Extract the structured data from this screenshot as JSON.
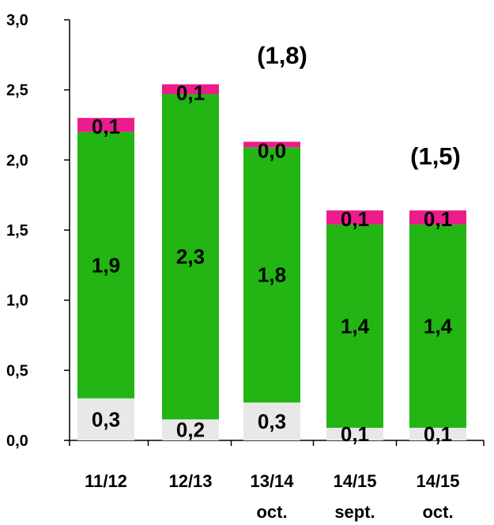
{
  "chart_data": {
    "type": "bar",
    "stacked": true,
    "categories": [
      [
        "11/12",
        ""
      ],
      [
        "12/13",
        ""
      ],
      [
        "13/14",
        "oct."
      ],
      [
        "14/15",
        "sept."
      ],
      [
        "14/15",
        "oct."
      ]
    ],
    "series": [
      {
        "values": [
          0.3,
          0.15,
          0.27,
          0.09,
          0.09
        ],
        "labels": [
          "0,3",
          "0,2",
          "0,3",
          "0,1",
          "0,1"
        ],
        "color": "#e8e8e8"
      },
      {
        "values": [
          1.9,
          2.32,
          1.82,
          1.45,
          1.45
        ],
        "labels": [
          "1,9",
          "2,3",
          "1,8",
          "1,4",
          "1,4"
        ],
        "color": "#22b514"
      },
      {
        "values": [
          0.1,
          0.07,
          0.04,
          0.1,
          0.1
        ],
        "labels": [
          "0,1",
          "0,1",
          "0,0",
          "0,1",
          "0,1"
        ],
        "color": "#ec1c8c"
      }
    ],
    "ylim": [
      0,
      3
    ],
    "yticks": [
      "0,0",
      "0,5",
      "1,0",
      "1,5",
      "2,0",
      "2,5",
      "3,0"
    ],
    "annotations": [
      {
        "text": "(1,8)",
        "x_index": 2,
        "y": 2.75
      },
      {
        "text": "(1,5)",
        "x_index": 4,
        "y": 2.03
      }
    ],
    "grid": false,
    "legend": "none"
  }
}
